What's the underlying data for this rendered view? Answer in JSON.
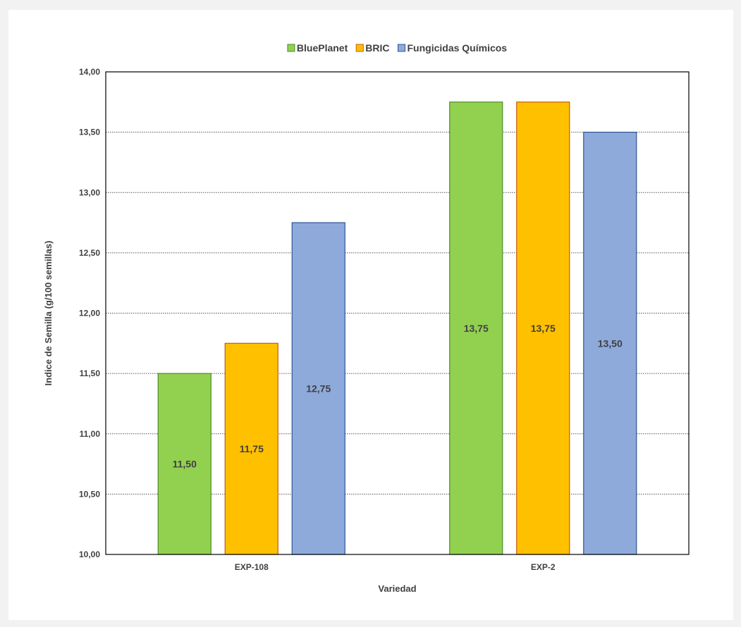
{
  "chart_data": {
    "type": "bar",
    "categories": [
      "EXP-108",
      "EXP-2"
    ],
    "series": [
      {
        "name": "BluePlanet",
        "values": [
          11.5,
          13.75
        ],
        "color": "#92d050",
        "stroke": "#4e8a2b"
      },
      {
        "name": "BRIC",
        "values": [
          11.75,
          13.75
        ],
        "color": "#ffc000",
        "stroke": "#c55a11"
      },
      {
        "name": "Fungicidas Químicos",
        "values": [
          12.75,
          13.5
        ],
        "color": "#8eaadb",
        "stroke": "#2f5597"
      }
    ],
    "data_labels": [
      [
        "11,50",
        "13,75"
      ],
      [
        "11,75",
        "13,75"
      ],
      [
        "12,75",
        "13,50"
      ]
    ],
    "title": "",
    "xlabel": "Variedad",
    "ylabel": "Indice de Semilla (g/100 semillas)",
    "ylim": [
      10.0,
      14.0
    ],
    "yticks": [
      10.0,
      10.5,
      11.0,
      11.5,
      12.0,
      12.5,
      13.0,
      13.5,
      14.0
    ],
    "ytick_labels": [
      "10,00",
      "10,50",
      "11,00",
      "11,50",
      "12,00",
      "12,50",
      "13,00",
      "13,50",
      "14,00"
    ],
    "grid": true,
    "legend_position": "top"
  }
}
